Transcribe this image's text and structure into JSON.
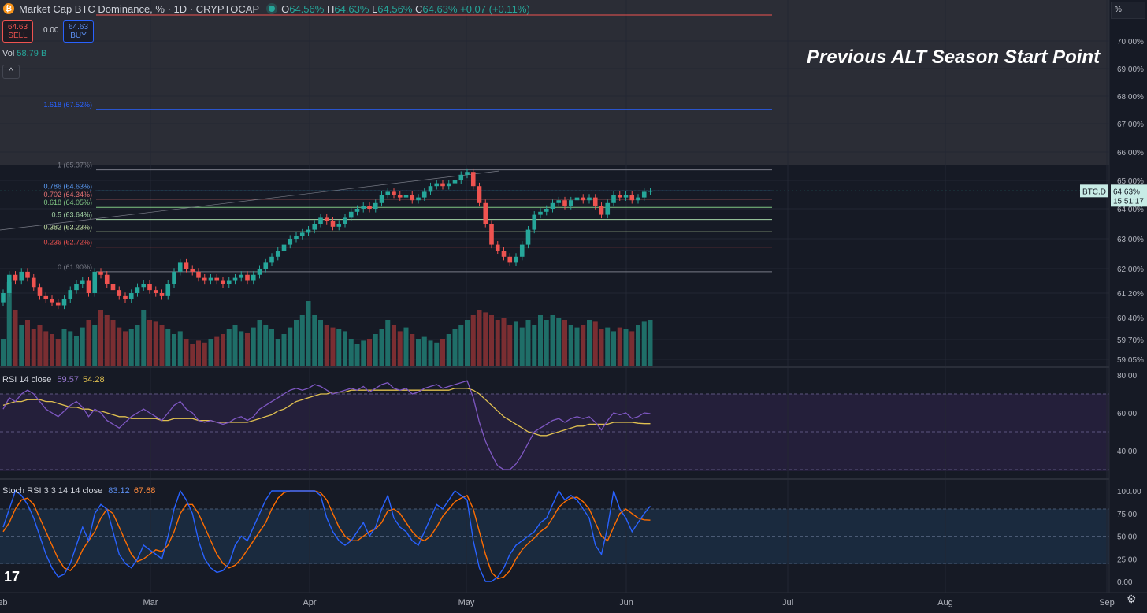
{
  "header": {
    "coin_glyph": "₿",
    "title": "Market Cap BTC Dominance, % · 1D · CRYPTOCAP",
    "o_label": "O",
    "o": "64.56%",
    "h_label": "H",
    "h": "64.63%",
    "l_label": "L",
    "l": "64.56%",
    "c_label": "C",
    "c": "64.63%",
    "change": "+0.07 (+0.11%)"
  },
  "trade": {
    "sell_price": "64.63",
    "sell_label": "SELL",
    "spread": "0.00",
    "buy_price": "64.63",
    "buy_label": "BUY"
  },
  "volume_legend": {
    "label": "Vol",
    "value": "58.79 B"
  },
  "collapse_glyph": "^",
  "annotation": "Previous ALT Season Start Point",
  "scale_unit": "%",
  "tv_logo": "17",
  "settings_icon": "⚙",
  "colors": {
    "up": "#26a69a",
    "down": "#ef5350",
    "up_vol": "#1f6e68",
    "down_vol": "#7a2e32",
    "rsi": "#7e57c2",
    "rsi_ma": "#e0c050",
    "stoch_k": "#2962ff",
    "stoch_d": "#ff6d00"
  },
  "chart_data": [
    {
      "type": "candlestick",
      "title": "Market Cap BTC Dominance, % · 1D · CRYPTOCAP",
      "ylim": [
        58.9,
        70.9
      ],
      "y_ticks": [
        "70.00%",
        "69.00%",
        "68.00%",
        "67.00%",
        "66.00%",
        "65.00%",
        "64.00%",
        "63.00%",
        "62.00%",
        "61.20%",
        "60.40%",
        "59.70%",
        "59.05%"
      ],
      "x_ticks": [
        "Feb",
        "Mar",
        "Apr",
        "May",
        "Jun",
        "Jul",
        "Aug",
        "Sep"
      ],
      "last_price_label": "BTC.D",
      "last_price": "64.63%",
      "countdown": "15:51:17",
      "fib_levels": [
        {
          "label": "1.618 (67.52%)",
          "value": 67.52,
          "color": "#2962ff"
        },
        {
          "label": "1 (65.37%)",
          "value": 65.37,
          "color": "#787b86"
        },
        {
          "label": "0.786 (64.63%)",
          "value": 64.63,
          "color": "#5b9cf6"
        },
        {
          "label": "0.702 (64.34%)",
          "value": 64.34,
          "color": "#e57373"
        },
        {
          "label": "0.618 (64.05%)",
          "value": 64.05,
          "color": "#81c784"
        },
        {
          "label": "0.5 (63.64%)",
          "value": 63.64,
          "color": "#a5d6a7"
        },
        {
          "label": "0.382 (63.23%)",
          "value": 63.23,
          "color": "#c5e1a5"
        },
        {
          "label": "0.236 (62.72%)",
          "value": 62.72,
          "color": "#ef5350"
        },
        {
          "label": "0 (61.90%)",
          "value": 61.9,
          "color": "#787b86"
        }
      ],
      "target_line": 70.9,
      "closes": [
        61.2,
        61.8,
        61.6,
        61.9,
        61.7,
        61.4,
        61.1,
        61.0,
        60.9,
        60.8,
        61.0,
        61.3,
        61.5,
        61.6,
        61.2,
        61.9,
        61.8,
        61.5,
        61.3,
        61.1,
        61.0,
        61.2,
        61.4,
        61.5,
        61.3,
        61.2,
        61.1,
        61.5,
        61.9,
        62.2,
        62.0,
        61.9,
        61.7,
        61.6,
        61.7,
        61.6,
        61.5,
        61.6,
        61.7,
        61.8,
        61.6,
        61.8,
        62.0,
        62.2,
        62.4,
        62.6,
        62.8,
        63.0,
        63.1,
        63.2,
        63.3,
        63.5,
        63.7,
        63.6,
        63.4,
        63.5,
        63.7,
        63.9,
        64.0,
        64.1,
        64.0,
        64.2,
        64.5,
        64.6,
        64.5,
        64.4,
        64.5,
        64.3,
        64.4,
        64.6,
        64.8,
        64.9,
        64.8,
        64.9,
        65.0,
        65.2,
        65.3,
        64.8,
        64.2,
        63.5,
        62.8,
        62.6,
        62.4,
        62.2,
        62.4,
        62.8,
        63.3,
        63.8,
        63.9,
        64.0,
        64.2,
        64.3,
        64.1,
        64.3,
        64.4,
        64.3,
        64.4,
        64.1,
        63.8,
        64.2,
        64.5,
        64.4,
        64.5,
        64.3,
        64.4,
        64.6,
        64.63
      ],
      "volumes": [
        0.3,
        0.9,
        0.6,
        0.45,
        0.5,
        0.4,
        0.45,
        0.38,
        0.35,
        0.3,
        0.4,
        0.38,
        0.33,
        0.42,
        0.5,
        0.45,
        0.6,
        0.55,
        0.5,
        0.42,
        0.38,
        0.4,
        0.45,
        0.6,
        0.5,
        0.48,
        0.45,
        0.4,
        0.35,
        0.38,
        0.3,
        0.25,
        0.28,
        0.26,
        0.3,
        0.32,
        0.35,
        0.4,
        0.45,
        0.38,
        0.36,
        0.42,
        0.5,
        0.45,
        0.4,
        0.3,
        0.35,
        0.42,
        0.5,
        0.55,
        0.7,
        0.55,
        0.5,
        0.45,
        0.42,
        0.4,
        0.38,
        0.3,
        0.25,
        0.28,
        0.3,
        0.35,
        0.4,
        0.5,
        0.45,
        0.38,
        0.42,
        0.35,
        0.3,
        0.32,
        0.28,
        0.26,
        0.3,
        0.35,
        0.4,
        0.45,
        0.5,
        0.55,
        0.6,
        0.58,
        0.55,
        0.5,
        0.52,
        0.45,
        0.48,
        0.42,
        0.5,
        0.45,
        0.55,
        0.5,
        0.55,
        0.52,
        0.5,
        0.45,
        0.42,
        0.45,
        0.5,
        0.48,
        0.4,
        0.42,
        0.38,
        0.42,
        0.4,
        0.38,
        0.45,
        0.48,
        0.5
      ]
    },
    {
      "type": "line",
      "title": "RSI 14 close",
      "legend_label": "RSI 14 close",
      "rsi_value": "59.57",
      "ma_value": "54.28",
      "ylim": [
        26,
        82
      ],
      "y_ticks": [
        "80.00",
        "60.00",
        "40.00"
      ],
      "bands": [
        70,
        50,
        30
      ],
      "rsi": [
        62,
        68,
        66,
        70,
        72,
        70,
        66,
        62,
        60,
        58,
        61,
        64,
        66,
        63,
        58,
        62,
        60,
        56,
        54,
        52,
        55,
        58,
        60,
        62,
        60,
        58,
        56,
        60,
        64,
        66,
        62,
        60,
        56,
        55,
        56,
        55,
        54,
        55,
        57,
        58,
        56,
        58,
        62,
        64,
        66,
        68,
        70,
        72,
        73,
        72,
        73,
        75,
        74,
        72,
        70,
        71,
        72,
        73,
        72,
        74,
        71,
        73,
        75,
        76,
        73,
        72,
        73,
        70,
        71,
        73,
        74,
        75,
        73,
        74,
        75,
        76,
        77,
        68,
        55,
        45,
        38,
        32,
        30,
        30,
        33,
        38,
        44,
        50,
        52,
        54,
        56,
        57,
        55,
        57,
        58,
        57,
        58,
        55,
        51,
        56,
        60,
        59,
        60,
        57,
        58,
        60,
        59.57
      ],
      "ma": [
        64,
        65,
        66,
        66,
        67,
        67,
        67,
        66,
        66,
        65,
        64,
        63,
        63,
        62,
        62,
        61,
        61,
        60,
        59,
        58,
        58,
        57,
        57,
        57,
        57,
        57,
        56,
        56,
        57,
        57,
        57,
        57,
        56,
        56,
        56,
        55,
        55,
        55,
        55,
        55,
        55,
        56,
        57,
        58,
        59,
        61,
        62,
        64,
        66,
        67,
        68,
        69,
        70,
        70,
        71,
        71,
        71,
        72,
        72,
        72,
        72,
        72,
        72,
        72,
        72,
        72,
        72,
        72,
        72,
        72,
        72,
        72,
        72,
        72,
        73,
        73,
        73,
        72,
        70,
        67,
        64,
        61,
        58,
        56,
        54,
        52,
        50,
        49,
        48,
        48,
        49,
        50,
        51,
        52,
        53,
        53,
        54,
        54,
        54,
        54,
        55,
        55,
        55,
        55,
        54.5,
        54.3,
        54.28
      ]
    },
    {
      "type": "line",
      "title": "Stoch RSI 3 3 14 14 close",
      "legend_label": "Stoch RSI 3 3 14 14 close",
      "k_value": "83.12",
      "d_value": "67.68",
      "ylim": [
        -5,
        105
      ],
      "y_ticks": [
        "100.00",
        "75.00",
        "50.00",
        "25.00",
        "0.00"
      ],
      "bands": [
        80,
        50,
        20
      ],
      "k": [
        60,
        80,
        100,
        95,
        85,
        70,
        50,
        30,
        15,
        5,
        8,
        20,
        40,
        60,
        45,
        75,
        85,
        80,
        55,
        30,
        20,
        15,
        25,
        40,
        35,
        30,
        25,
        50,
        80,
        100,
        90,
        75,
        45,
        25,
        15,
        10,
        12,
        20,
        40,
        50,
        45,
        60,
        75,
        90,
        100,
        100,
        100,
        100,
        100,
        100,
        100,
        100,
        95,
        70,
        55,
        45,
        40,
        45,
        55,
        65,
        50,
        60,
        80,
        95,
        70,
        60,
        55,
        45,
        40,
        55,
        70,
        85,
        80,
        90,
        100,
        95,
        90,
        45,
        15,
        0,
        0,
        5,
        15,
        30,
        40,
        45,
        50,
        55,
        65,
        70,
        85,
        100,
        90,
        95,
        90,
        80,
        70,
        40,
        30,
        60,
        100,
        80,
        70,
        55,
        65,
        75,
        83.12
      ],
      "d": [
        55,
        65,
        80,
        90,
        92,
        85,
        70,
        55,
        40,
        25,
        15,
        12,
        20,
        35,
        45,
        55,
        70,
        80,
        75,
        60,
        45,
        30,
        22,
        25,
        30,
        35,
        33,
        40,
        55,
        75,
        85,
        85,
        75,
        60,
        45,
        30,
        20,
        15,
        18,
        25,
        35,
        45,
        55,
        65,
        80,
        92,
        98,
        100,
        100,
        100,
        100,
        100,
        98,
        90,
        75,
        60,
        50,
        45,
        45,
        50,
        55,
        58,
        65,
        78,
        80,
        75,
        65,
        55,
        48,
        45,
        50,
        60,
        72,
        80,
        88,
        92,
        95,
        80,
        55,
        30,
        10,
        3,
        5,
        12,
        25,
        35,
        42,
        48,
        55,
        60,
        70,
        82,
        88,
        92,
        93,
        88,
        80,
        65,
        50,
        45,
        60,
        75,
        80,
        75,
        70,
        68,
        67.68
      ]
    }
  ]
}
